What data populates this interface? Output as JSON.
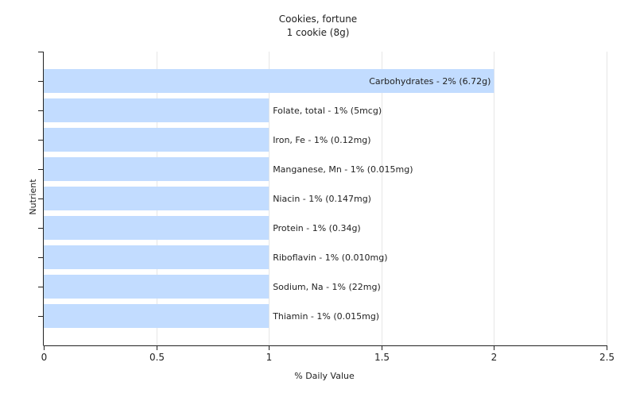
{
  "chart_data": {
    "type": "bar",
    "orientation": "horizontal",
    "title": "Cookies, fortune",
    "subtitle": "1 cookie (8g)",
    "xlabel": "% Daily Value",
    "ylabel": "Nutrient",
    "xlim": [
      0,
      2.5
    ],
    "xticks": [
      0,
      0.5,
      1,
      1.5,
      2,
      2.5
    ],
    "xtick_labels": [
      "0",
      "0.5",
      "1",
      "1.5",
      "2",
      "2.5"
    ],
    "grid": true,
    "bar_color": "#c2dcff",
    "categories": [
      "Carbohydrates",
      "Folate, total",
      "Iron, Fe",
      "Manganese, Mn",
      "Niacin",
      "Protein",
      "Riboflavin",
      "Sodium, Na",
      "Thiamin"
    ],
    "values": [
      2,
      1,
      1,
      1,
      1,
      1,
      1,
      1,
      1
    ],
    "data_labels": [
      "Carbohydrates - 2% (6.72g)",
      "Folate, total - 1% (5mcg)",
      "Iron, Fe - 1% (0.12mg)",
      "Manganese, Mn - 1% (0.015mg)",
      "Niacin - 1% (0.147mg)",
      "Protein - 1% (0.34g)",
      "Riboflavin - 1% (0.010mg)",
      "Sodium, Na - 1% (22mg)",
      "Thiamin - 1% (0.015mg)"
    ]
  }
}
